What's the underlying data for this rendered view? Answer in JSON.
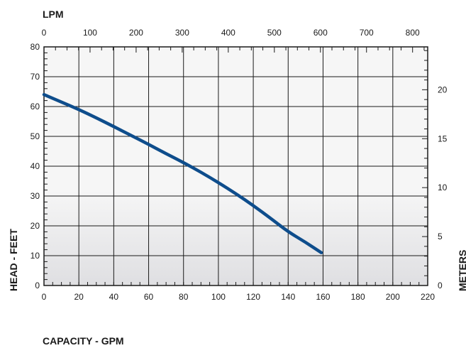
{
  "chart_data": {
    "type": "line",
    "title": "",
    "xlabel": "CAPACITY - GPM",
    "ylabel": "HEAD - FEET",
    "x2label": "LPM",
    "y2label": "METERS",
    "xlim": [
      0,
      220
    ],
    "ylim": [
      0,
      80
    ],
    "x2lim": [
      0,
      832.8
    ],
    "y2lim": [
      0,
      24.38
    ],
    "x_ticks": [
      0,
      20,
      40,
      60,
      80,
      100,
      120,
      140,
      160,
      180,
      200,
      220
    ],
    "y_ticks": [
      0,
      10,
      20,
      30,
      40,
      50,
      60,
      70,
      80
    ],
    "x2_ticks": [
      0,
      100,
      200,
      300,
      400,
      500,
      600,
      700,
      800
    ],
    "y2_ticks": [
      0,
      5,
      10,
      15,
      20
    ],
    "grid": true,
    "series": [
      {
        "name": "",
        "color": "#0e4d8c",
        "x": [
          0,
          10,
          20,
          30,
          40,
          50,
          60,
          70,
          80,
          90,
          100,
          110,
          120,
          130,
          140,
          150,
          159
        ],
        "y": [
          64,
          61.5,
          59,
          56.2,
          53.3,
          50.3,
          47.3,
          44.2,
          41.2,
          38,
          34.5,
          30.8,
          26.8,
          22.5,
          18,
          14.5,
          11
        ]
      }
    ],
    "colors": {
      "plot_background_top": "#f6f6f6",
      "plot_background_bottom": "#dfdfe2",
      "grid": "#1a1a1a",
      "curve": "#0e4d8c"
    }
  }
}
